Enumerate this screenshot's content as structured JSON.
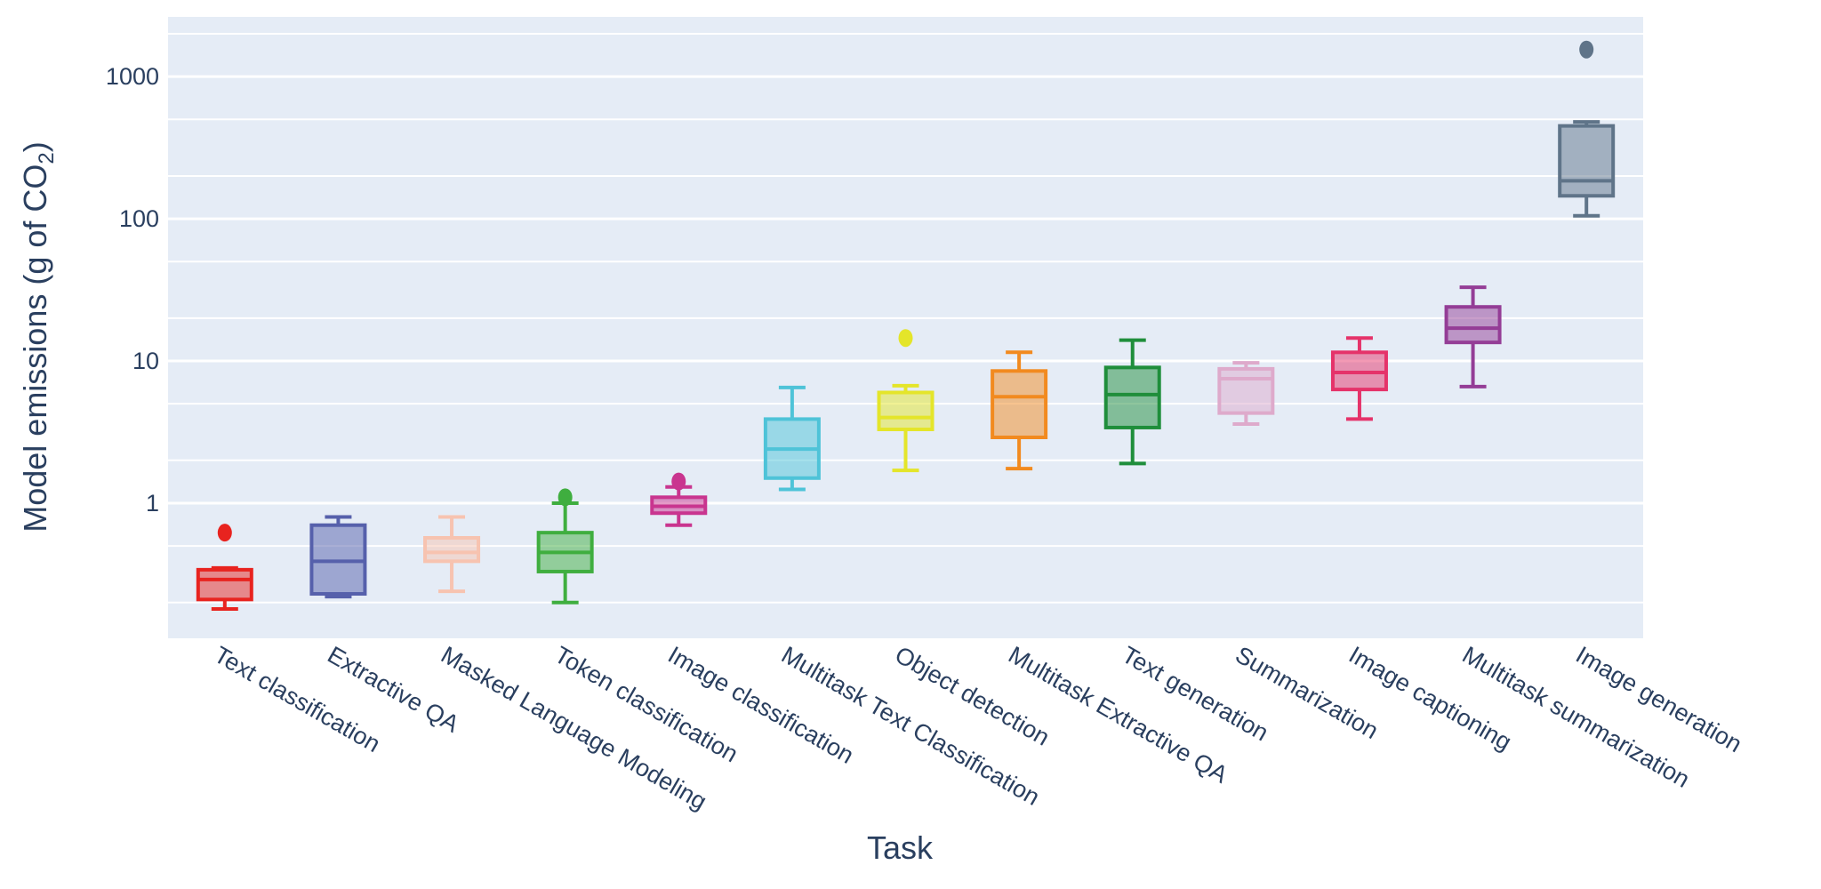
{
  "chart_data": {
    "type": "box",
    "xlabel": "Task",
    "ylabel": "Model emissions (g of CO",
    "ylabel_subscript": "2",
    "ylabel_close": ")",
    "yscale": "log",
    "ylim": [
      0.112,
      2630
    ],
    "yticks": [
      1,
      10,
      100,
      1000
    ],
    "ytick_labels": [
      "1",
      "10",
      "100",
      "1000"
    ],
    "minor_grid": [
      0.2,
      0.5,
      2,
      5,
      20,
      50,
      200,
      500,
      2000
    ],
    "grid": true,
    "plot_background": "#e5ecf6",
    "categories": [
      "Text classification",
      "Extractive QA",
      "Masked Language Modeling",
      "Token classification",
      "Image classification",
      "Multitask Text Classification",
      "Object detection",
      "Multitask Extractive QA",
      "Text generation",
      "Summarization",
      "Image captioning",
      "Multitask summarization",
      "Image generation"
    ],
    "series": [
      {
        "category": "Text classification",
        "color": "#e8231f",
        "lower": 0.18,
        "q1": 0.21,
        "median": 0.29,
        "q3": 0.34,
        "upper": 0.35,
        "outliers": [
          0.62
        ]
      },
      {
        "category": "Extractive QA",
        "color": "#5660ab",
        "lower": 0.22,
        "q1": 0.23,
        "median": 0.39,
        "q3": 0.7,
        "upper": 0.8,
        "outliers": []
      },
      {
        "category": "Masked Language Modeling",
        "color": "#f7c3b0",
        "lower": 0.24,
        "q1": 0.39,
        "median": 0.45,
        "q3": 0.57,
        "upper": 0.8,
        "outliers": []
      },
      {
        "category": "Token classification",
        "color": "#3fae3f",
        "lower": 0.2,
        "q1": 0.33,
        "median": 0.45,
        "q3": 0.62,
        "upper": 1.0,
        "outliers": [
          1.1
        ]
      },
      {
        "category": "Image classification",
        "color": "#c9358f",
        "lower": 0.7,
        "q1": 0.85,
        "median": 0.95,
        "q3": 1.1,
        "upper": 1.3,
        "outliers": [
          1.42
        ]
      },
      {
        "category": "Multitask Text Classification",
        "color": "#4ec3d8",
        "lower": 1.25,
        "q1": 1.5,
        "median": 2.4,
        "q3": 3.9,
        "upper": 6.5,
        "outliers": []
      },
      {
        "category": "Object detection",
        "color": "#e4e52a",
        "lower": 1.7,
        "q1": 3.3,
        "median": 4.0,
        "q3": 6.0,
        "upper": 6.7,
        "outliers": [
          14.5
        ]
      },
      {
        "category": "Multitask Extractive QA",
        "color": "#f28a1f",
        "lower": 1.75,
        "q1": 2.9,
        "median": 5.6,
        "q3": 8.5,
        "upper": 11.5,
        "outliers": []
      },
      {
        "category": "Text generation",
        "color": "#1f8e3b",
        "lower": 1.9,
        "q1": 3.4,
        "median": 5.8,
        "q3": 9.0,
        "upper": 14,
        "outliers": []
      },
      {
        "category": "Summarization",
        "color": "#deaacb",
        "lower": 3.6,
        "q1": 4.3,
        "median": 7.5,
        "q3": 8.8,
        "upper": 9.7,
        "outliers": []
      },
      {
        "category": "Image captioning",
        "color": "#e5336a",
        "lower": 3.9,
        "q1": 6.3,
        "median": 8.3,
        "q3": 11.5,
        "upper": 14.5,
        "outliers": []
      },
      {
        "category": "Multitask summarization",
        "color": "#943d96",
        "lower": 6.6,
        "q1": 13.5,
        "median": 17,
        "q3": 24,
        "upper": 33,
        "outliers": []
      },
      {
        "category": "Image generation",
        "color": "#5f7489",
        "lower": 105,
        "q1": 145,
        "median": 185,
        "q3": 450,
        "upper": 480,
        "outliers": [
          1550
        ]
      }
    ]
  }
}
